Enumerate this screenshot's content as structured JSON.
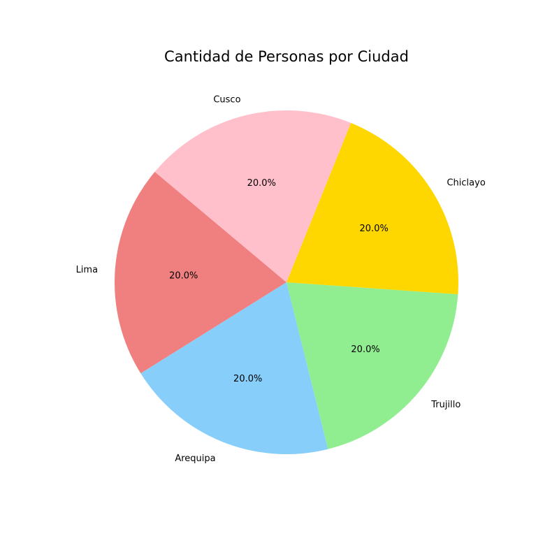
{
  "chart_data": {
    "type": "pie",
    "title": "Cantidad de Personas por Ciudad",
    "slices": [
      {
        "label": "Lima",
        "value": 20,
        "pct_label": "20.0%",
        "color": "#F08080"
      },
      {
        "label": "Arequipa",
        "value": 20,
        "pct_label": "20.0%",
        "color": "#87CEFA"
      },
      {
        "label": "Trujillo",
        "value": 20,
        "pct_label": "20.0%",
        "color": "#90EE90"
      },
      {
        "label": "Chiclayo",
        "value": 20,
        "pct_label": "20.0%",
        "color": "#FFD700"
      },
      {
        "label": "Cusco",
        "value": 20,
        "pct_label": "20.0%",
        "color": "#FFC0CB"
      }
    ],
    "start_angle_deg": 140,
    "direction": "counterclockwise"
  }
}
